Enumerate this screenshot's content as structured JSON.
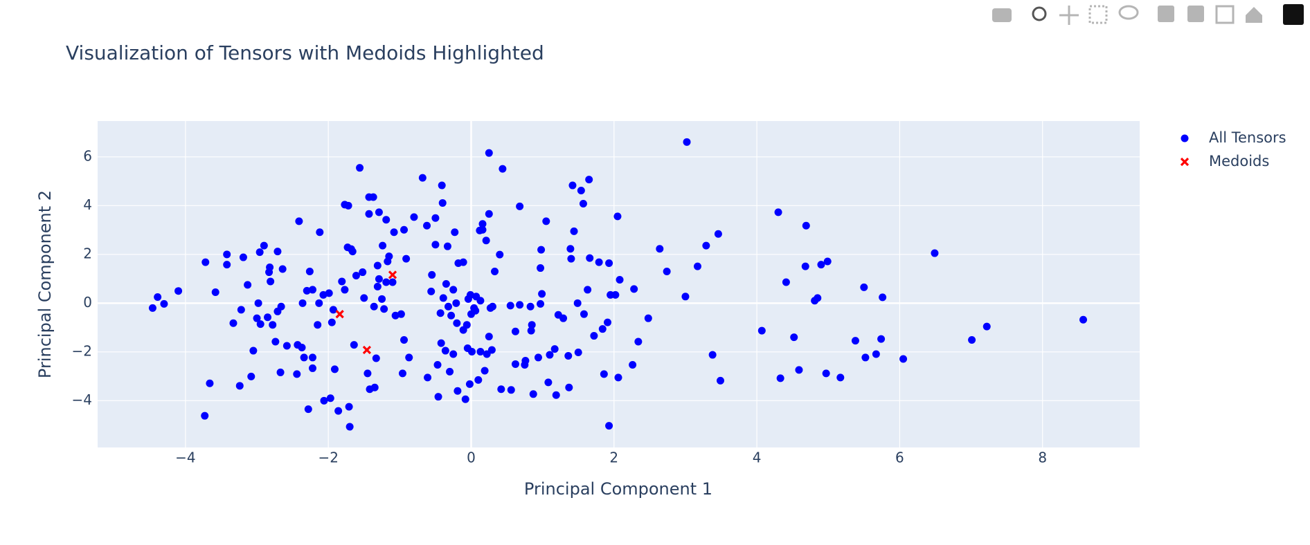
{
  "chart_data": {
    "type": "scatter",
    "title": "Visualization of Tensors with Medoids Highlighted",
    "x_label": "Principal Component 1",
    "y_label": "Principal Component 2",
    "xlim": [
      -5.23,
      9.36
    ],
    "ylim": [
      -5.92,
      7.47
    ],
    "xticks": [
      {
        "value": -4,
        "label": "−4"
      },
      {
        "value": -2,
        "label": "−2"
      },
      0,
      2,
      4,
      6,
      8
    ],
    "yticks": [
      {
        "value": -4,
        "label": "−4"
      },
      {
        "value": -2,
        "label": "−2"
      },
      0,
      2,
      4,
      6
    ],
    "grid": true,
    "legend": "right",
    "series": [
      {
        "name": "All Tensors",
        "color": "#0000ff",
        "symbol": "circle",
        "x": [
          -4.46,
          -4.39,
          -4.3,
          -4.1,
          -3.72,
          -3.73,
          -3.66,
          -3.58,
          -3.42,
          -3.42,
          -3.33,
          -3.24,
          -3.22,
          -3.19,
          -3.13,
          -3.08,
          -3.05,
          -3.0,
          -2.98,
          -2.96,
          -2.9,
          -2.95,
          -2.85,
          -2.83,
          -2.82,
          -2.81,
          -2.78,
          -2.74,
          -2.71,
          -2.71,
          -2.67,
          -2.64,
          -2.66,
          -2.58,
          -2.44,
          -2.43,
          -2.41,
          -2.37,
          -2.36,
          -2.34,
          -2.3,
          -2.28,
          -2.26,
          -2.22,
          -2.22,
          -2.22,
          -2.15,
          -2.13,
          -2.12,
          -2.07,
          -2.06,
          -1.99,
          -1.97,
          -1.95,
          -1.93,
          -1.91,
          -1.86,
          -1.81,
          -1.77,
          -1.77,
          -1.73,
          -1.72,
          -1.71,
          -1.7,
          -1.68,
          -1.66,
          -1.64,
          -1.61,
          -1.56,
          -1.52,
          -1.5,
          -1.45,
          -1.43,
          -1.43,
          -1.42,
          -1.37,
          -1.36,
          -1.35,
          -1.33,
          -1.31,
          -1.31,
          -1.29,
          -1.29,
          -1.25,
          -1.24,
          -1.22,
          -1.19,
          -1.19,
          -1.17,
          -1.15,
          -1.1,
          -1.08,
          -1.06,
          -0.98,
          -0.96,
          -0.94,
          -0.94,
          -0.91,
          -0.87,
          -0.8,
          -0.68,
          -0.62,
          -0.61,
          -0.56,
          -0.55,
          -0.5,
          -0.5,
          -0.47,
          -0.46,
          -0.43,
          -0.42,
          -0.41,
          -0.4,
          -0.39,
          -0.36,
          -0.35,
          -0.33,
          -0.32,
          -0.3,
          -0.28,
          -0.25,
          -0.25,
          -0.23,
          -0.21,
          -0.2,
          -0.19,
          -0.18,
          -0.11,
          -0.11,
          -0.08,
          -0.06,
          -0.05,
          -0.04,
          -0.02,
          -0.01,
          0,
          0.01,
          0.04,
          0.06,
          0.07,
          0.1,
          0.12,
          0.13,
          0.13,
          0.16,
          0.16,
          0.19,
          0.21,
          0.22,
          0.25,
          0.25,
          0.25,
          0.27,
          0.29,
          0.3,
          0.33,
          0.4,
          0.42,
          0.44,
          0.55,
          0.56,
          0.62,
          0.62,
          0.68,
          0.68,
          0.75,
          0.76,
          0.83,
          0.84,
          0.85,
          0.87,
          0.94,
          0.97,
          0.97,
          0.98,
          0.99,
          1.05,
          1.08,
          1.1,
          1.17,
          1.19,
          1.22,
          1.29,
          1.36,
          1.37,
          1.39,
          1.4,
          1.42,
          1.44,
          1.49,
          1.5,
          1.54,
          1.57,
          1.58,
          1.63,
          1.65,
          1.66,
          1.72,
          1.79,
          1.84,
          1.86,
          1.91,
          1.93,
          1.93,
          1.95,
          2.02,
          2.05,
          2.06,
          2.08,
          2.26,
          2.28,
          2.34,
          2.48,
          2.64,
          2.74,
          3.0,
          3.02,
          3.17,
          3.29,
          3.38,
          3.46,
          3.49,
          4.07,
          4.3,
          4.33,
          4.41,
          4.52,
          4.59,
          4.68,
          4.69,
          4.81,
          4.85,
          4.9,
          4.97,
          4.99,
          5.17,
          5.38,
          5.5,
          5.52,
          5.67,
          5.74,
          5.76,
          6.05,
          6.49,
          7.01,
          7.22,
          8.57
        ],
        "values": [
          -0.2,
          0.25,
          -0.03,
          0.5,
          1.68,
          -4.62,
          -3.29,
          0.45,
          2.0,
          1.58,
          -0.82,
          -3.39,
          -0.27,
          1.88,
          0.75,
          -3.01,
          -1.95,
          -0.62,
          0,
          2.09,
          2.36,
          -0.86,
          -0.58,
          1.27,
          1.47,
          0.89,
          -0.89,
          -1.58,
          2.12,
          -0.34,
          -2.84,
          1.4,
          -0.14,
          -1.75,
          -2.91,
          -1.71,
          3.36,
          -1.82,
          0,
          -2.23,
          0.51,
          -4.35,
          1.3,
          0.55,
          -2.23,
          -2.67,
          -0.89,
          0,
          2.91,
          0.34,
          -4.0,
          0.41,
          -3.9,
          -0.79,
          -0.27,
          -2.71,
          -4.42,
          0.89,
          0.55,
          4.04,
          2.29,
          4.0,
          -4.25,
          -5.07,
          2.22,
          2.12,
          -1.71,
          1.13,
          5.55,
          1.27,
          0.21,
          -2.88,
          4.35,
          3.66,
          -3.53,
          4.35,
          -0.14,
          -3.46,
          -2.26,
          1.54,
          0.68,
          3.73,
          0.99,
          0.17,
          2.36,
          -0.24,
          3.42,
          0.86,
          1.71,
          1.92,
          0.86,
          2.91,
          -0.51,
          -0.45,
          -2.88,
          3.01,
          -1.51,
          1.82,
          -2.23,
          3.53,
          5.14,
          3.18,
          -3.05,
          0.48,
          1.16,
          3.49,
          2.4,
          -2.53,
          -3.84,
          -0.41,
          -1.64,
          4.83,
          4.11,
          0.21,
          -1.95,
          0.79,
          2.33,
          -0.14,
          -2.81,
          -0.51,
          0.55,
          -2.09,
          2.91,
          0,
          -0.82,
          -3.6,
          1.64,
          1.68,
          -1.1,
          -3.94,
          -0.89,
          -1.85,
          0.17,
          -3.32,
          0.34,
          -0.45,
          -1.99,
          -0.2,
          -0.31,
          0.27,
          -3.15,
          2.98,
          0.1,
          -1.99,
          3.01,
          3.25,
          -2.77,
          2.57,
          -2.09,
          6.16,
          -1.37,
          3.66,
          -0.2,
          -1.92,
          -0.14,
          1.3,
          1.99,
          -3.53,
          5.51,
          -0.1,
          -3.56,
          -1.16,
          -2.5,
          3.97,
          -0.07,
          -2.53,
          -2.36,
          -0.14,
          -1.13,
          -0.89,
          -3.73,
          -2.23,
          -0.03,
          1.44,
          2.19,
          0.38,
          3.36,
          -3.25,
          -2.12,
          -1.88,
          -3.77,
          -0.48,
          -0.62,
          -2.16,
          -3.46,
          2.23,
          1.82,
          4.83,
          2.95,
          0,
          -2.02,
          4.62,
          4.08,
          -0.45,
          0.55,
          5.07,
          1.85,
          -1.34,
          1.68,
          -1.06,
          -2.91,
          -0.79,
          1.64,
          -5.03,
          0.34,
          0.34,
          3.56,
          -3.05,
          0.96,
          -2.53,
          0.58,
          -1.58,
          -0.62,
          2.23,
          1.3,
          0.27,
          6.61,
          1.51,
          2.36,
          -2.12,
          2.84,
          -3.18,
          -1.13,
          3.73,
          -3.08,
          0.86,
          -1.4,
          -2.74,
          1.51,
          3.18,
          0.1,
          0.21,
          1.58,
          -2.88,
          1.71,
          -3.05,
          -1.54,
          0.65,
          -2.23,
          -2.09,
          -1.47,
          0.24,
          -2.29,
          2.05,
          -1.51,
          -0.96,
          -0.68
        ]
      },
      {
        "name": "Medoids",
        "color": "#ff0000",
        "symbol": "x",
        "x": [
          -1.84,
          -1.46,
          -1.1
        ],
        "values": [
          -0.45,
          -1.92,
          1.16
        ]
      }
    ]
  }
}
